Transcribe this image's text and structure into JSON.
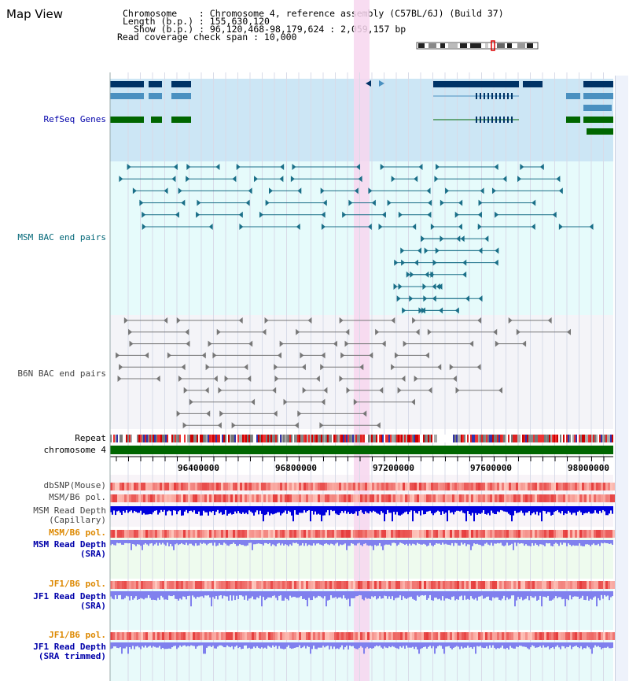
{
  "title": "Map View",
  "info": {
    "chromosome": "Chromosome    : Chromosome 4, reference assembly (C57BL/6J) (Build 37)",
    "length": "Length (b.p.) : 155,630,120",
    "show": "Show (b.p.) : 96,120,468-98,179,624 : 2,059,157 bp",
    "coverage": "Read coverage check span : 10,000"
  },
  "tracks": {
    "refseq": "RefSeq Genes",
    "msm_bac": "MSM BAC end pairs",
    "b6n_bac": "B6N BAC end pairs",
    "repeat": "Repeat",
    "chromosome": "chromosome 4",
    "dbsnp": "dbSNP(Mouse)",
    "msm_pol": "MSM/B6 pol.",
    "msm_depth_cap": "MSM Read Depth\n(Capillary)",
    "msm_pol2": "MSM/B6 pol.",
    "msm_depth_sra": "MSM Read Depth\n(SRA)",
    "jf1_pol": "JF1/B6 pol.",
    "jf1_depth_sra": "JF1 Read Depth\n(SRA)",
    "jf1_pol2": "JF1/B6 pol.",
    "jf1_depth_trim": "JF1 Read Depth\n(SRA trimmed)"
  },
  "scale": {
    "ticks": [
      "96400000",
      "96800000",
      "97200000",
      "97600000",
      "98000000"
    ]
  },
  "colors": {
    "refseq_bg": "#cce6f5",
    "msm_bg": "#e6fbfb",
    "b6n_bg": "#f4f4f8",
    "highlight": "#f7d6ef",
    "gene_dark": "#003366",
    "gene_mid": "#4a90c0",
    "gene_green": "#006600",
    "bac_msm": "#1a6f88",
    "bac_b6n": "#777777",
    "chrom": "#006600",
    "depth_blue": "#0000dd",
    "depth_sra": "#8080ee",
    "label_blue": "#0000aa",
    "label_teal": "#006677",
    "label_orange": "#dd8800",
    "label_gray": "#444444"
  }
}
